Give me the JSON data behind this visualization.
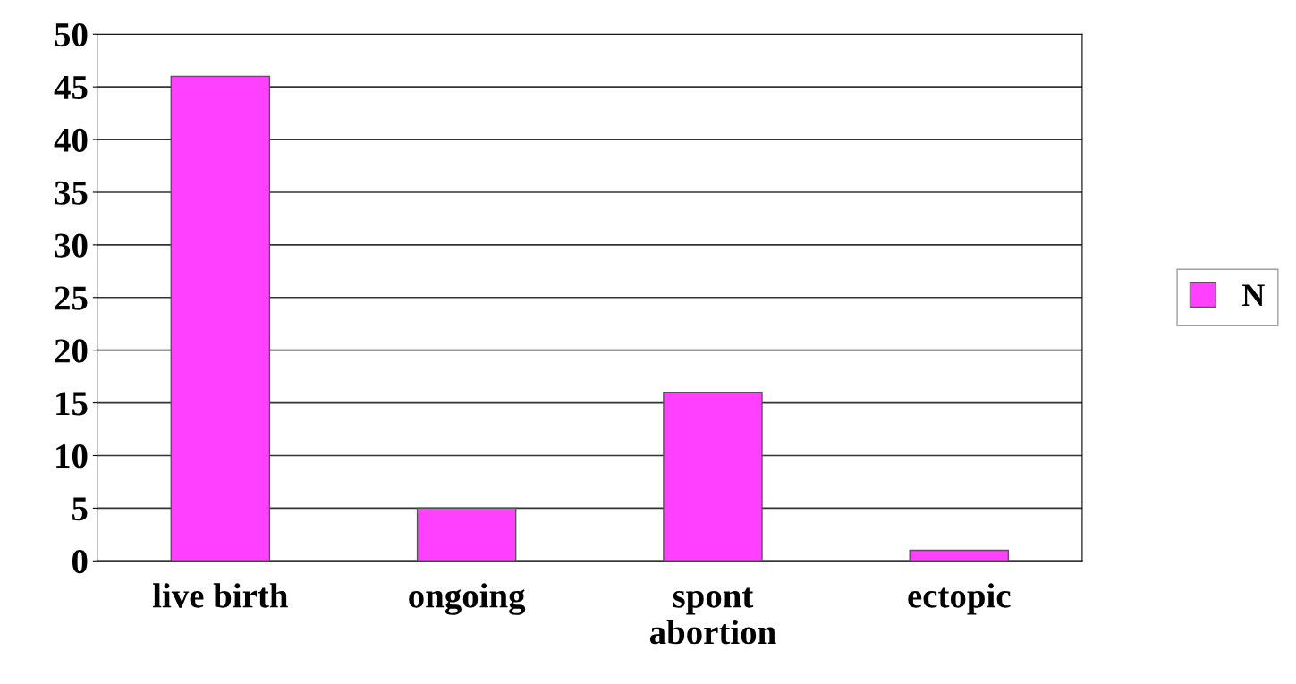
{
  "chart_data": {
    "type": "bar",
    "categories": [
      "live birth",
      "ongoing",
      "spont\nabortion",
      "ectopic"
    ],
    "series": [
      {
        "name": "N",
        "color": "#ff40ff",
        "values": [
          46,
          5,
          16,
          1
        ]
      }
    ],
    "ylim": [
      0,
      50
    ],
    "yticks": [
      0,
      5,
      10,
      15,
      20,
      25,
      30,
      35,
      40,
      45,
      50
    ],
    "grid": "y",
    "legend": "right"
  }
}
